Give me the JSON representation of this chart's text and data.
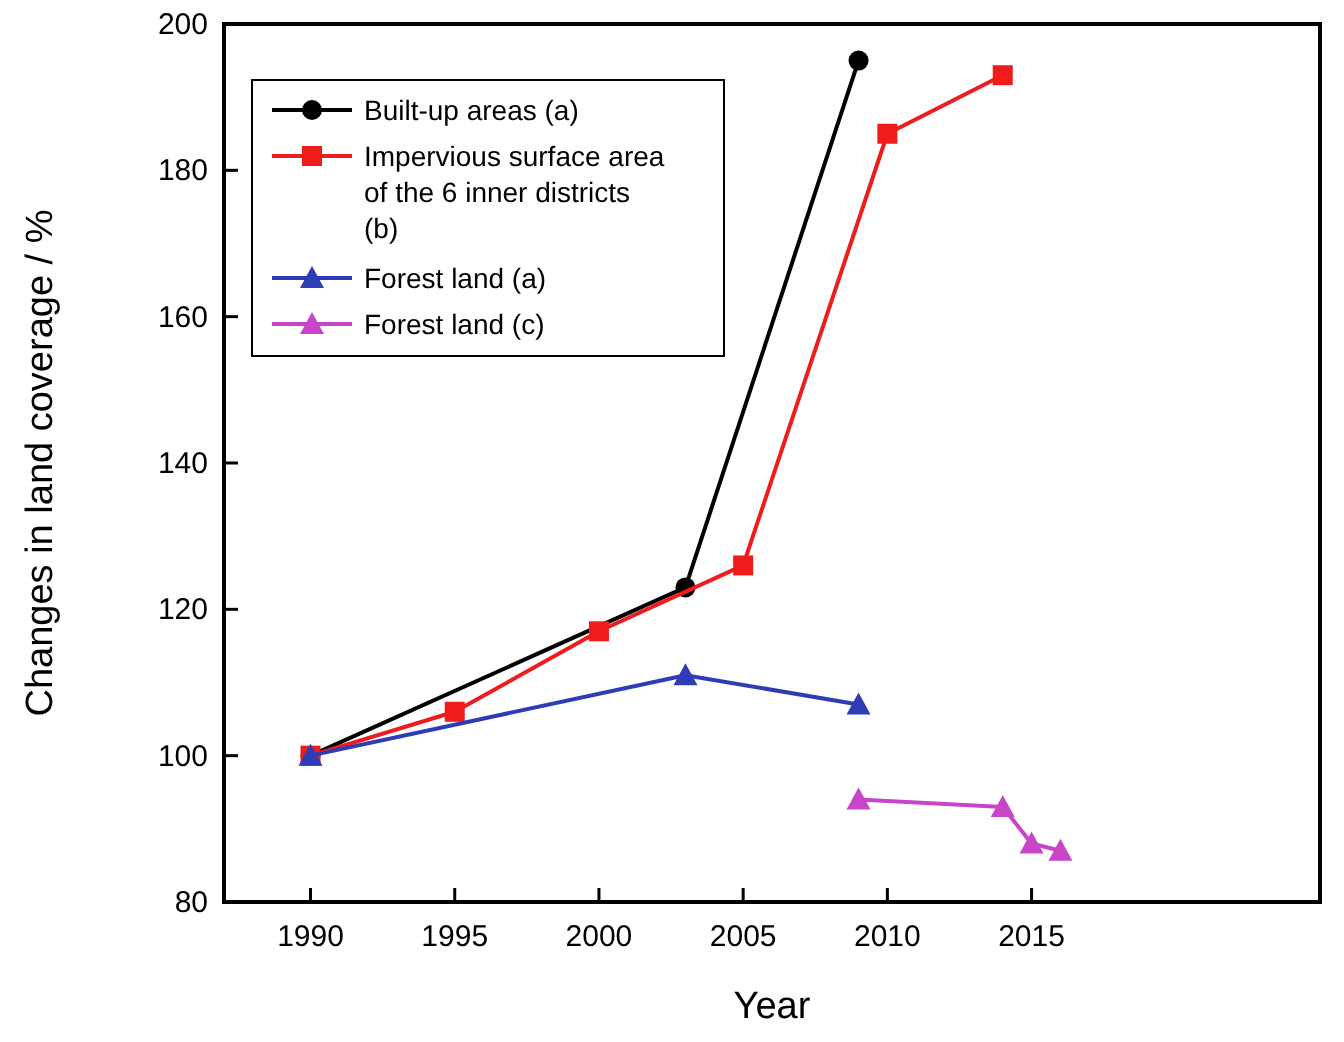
{
  "chart_data": {
    "type": "line",
    "xlabel": "Year",
    "ylabel": "Changes in land coverage / %",
    "xlim": [
      1987,
      2025
    ],
    "xticks": [
      1990,
      1995,
      2000,
      2005,
      2010,
      2015
    ],
    "ylim": [
      80,
      200
    ],
    "yticks": [
      80,
      100,
      120,
      140,
      160,
      180,
      200
    ],
    "legend": "top left",
    "grid": false,
    "series": [
      {
        "name": "Built-up areas (a)",
        "color": "#000000",
        "marker": "circle",
        "x": [
          1990,
          2003,
          2009
        ],
        "values": [
          100,
          123,
          195
        ]
      },
      {
        "name": "Impervious surface area of the 6 inner districts (b)",
        "color": "#ee1c1c",
        "marker": "square",
        "x": [
          1990,
          1995,
          2000,
          2005,
          2010,
          2014
        ],
        "values": [
          100,
          106,
          117,
          126,
          185,
          193
        ]
      },
      {
        "name": "Forest land (a)",
        "color": "#2e3db5",
        "marker": "triangle",
        "x": [
          1990,
          2003,
          2009
        ],
        "values": [
          100,
          111,
          107
        ]
      },
      {
        "name": "Forest land (c)",
        "color": "#c745c7",
        "marker": "triangle",
        "x": [
          2009,
          2014,
          2015,
          2016
        ],
        "values": [
          94,
          93,
          88,
          87
        ]
      }
    ]
  }
}
